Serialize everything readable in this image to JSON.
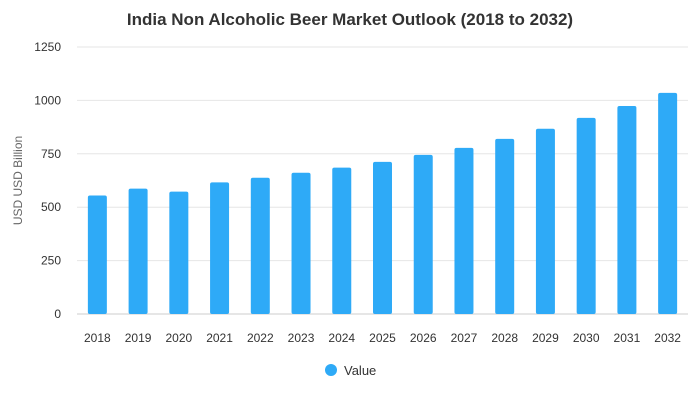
{
  "chart_data": {
    "type": "bar",
    "title": "India Non Alcoholic Beer Market Outlook (2018 to 2032)",
    "xlabel": "",
    "ylabel": "USD USD Billion",
    "categories": [
      "2018",
      "2019",
      "2020",
      "2021",
      "2022",
      "2023",
      "2024",
      "2025",
      "2026",
      "2027",
      "2028",
      "2029",
      "2030",
      "2031",
      "2032"
    ],
    "series": [
      {
        "name": "Value",
        "color": "#2eaaf7",
        "values": [
          555,
          587,
          573,
          616,
          638,
          661,
          685,
          712,
          745,
          778,
          820,
          867,
          918,
          974,
          1035
        ]
      }
    ],
    "ylim": [
      0,
      1250
    ],
    "yticks": [
      0,
      250,
      500,
      750,
      1000,
      1250
    ],
    "grid": true,
    "legend_position": "bottom-center"
  }
}
